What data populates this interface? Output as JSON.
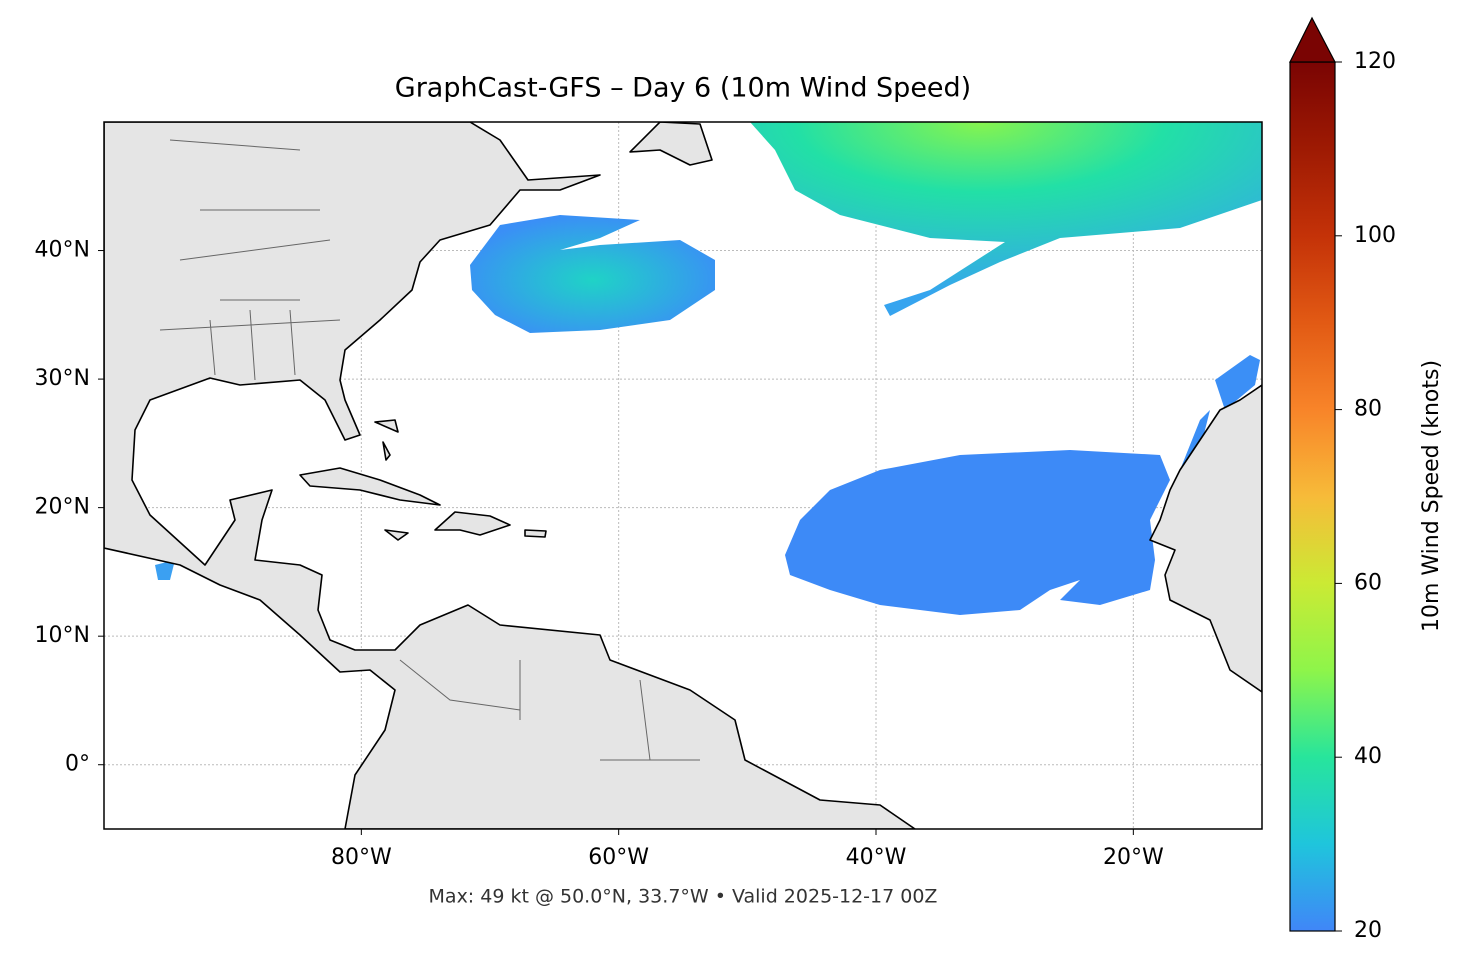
{
  "map": {
    "title": "GraphCast-GFS – Day 6 (10m Wind Speed)",
    "xlim": [
      -100,
      -10
    ],
    "ylim": [
      -5,
      50
    ],
    "xticks": [
      {
        "value": -80,
        "label": "80°W"
      },
      {
        "value": -60,
        "label": "60°W"
      },
      {
        "value": -40,
        "label": "40°W"
      },
      {
        "value": -20,
        "label": "20°W"
      }
    ],
    "yticks": [
      {
        "value": 0,
        "label": "0°"
      },
      {
        "value": 10,
        "label": "10°N"
      },
      {
        "value": 20,
        "label": "20°N"
      },
      {
        "value": 30,
        "label": "30°N"
      },
      {
        "value": 40,
        "label": "40°N"
      }
    ],
    "footer": "Max: 49 kt @ 50.0°N, 33.7°W • Valid 2025-12-17 00Z"
  },
  "colorbar": {
    "label": "10m Wind Speed (knots)",
    "lim": [
      20,
      120
    ],
    "ticks": [
      20,
      40,
      60,
      80,
      100,
      120
    ]
  }
}
